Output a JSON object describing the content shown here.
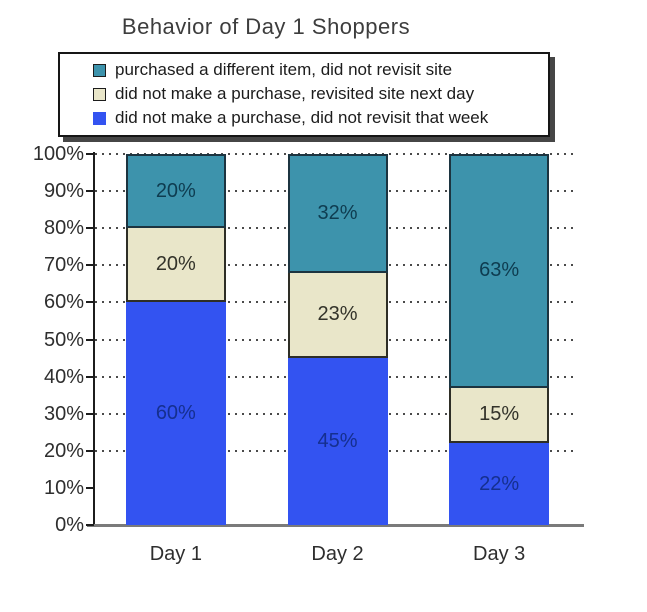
{
  "chart_data": {
    "type": "bar",
    "stacked": true,
    "title": "Behavior of Day 1 Shoppers",
    "categories": [
      "Day 1",
      "Day 2",
      "Day 3"
    ],
    "series": [
      {
        "name": "purchased a different item, did not revisit site",
        "values": [
          20,
          32,
          63
        ],
        "labels": [
          "20%",
          "32%",
          "63%"
        ],
        "color": "#3d93ac",
        "border_color": "#1c3440",
        "border_style": "full",
        "label_color": "#0e3c50",
        "swatch_border": "#1c1c1c"
      },
      {
        "name": "did not make a purchase, revisited site next day",
        "values": [
          20,
          23,
          15
        ],
        "labels": [
          "20%",
          "23%",
          "15%"
        ],
        "color": "#e9e6c9",
        "border_color": "#2e2e26",
        "border_style": "sides-bottom",
        "label_color": "#33332a",
        "swatch_border": "#1c1c1c"
      },
      {
        "name": "did not make a purchase, did not revisit that week",
        "values": [
          60,
          45,
          22
        ],
        "labels": [
          "60%",
          "45%",
          "22%"
        ],
        "color": "#3353f1",
        "border_color": "none",
        "border_style": "none",
        "label_color": "#152f8f",
        "swatch_border": "#3353f1"
      }
    ],
    "stack_order_bottom_to_top": [
      2,
      1,
      0
    ],
    "y_axis": {
      "range": [
        0,
        100
      ],
      "ticks": [
        {
          "value": 0,
          "label": "0%"
        },
        {
          "value": 10,
          "label": "10%"
        },
        {
          "value": 20,
          "label": "20%"
        },
        {
          "value": 30,
          "label": "30%"
        },
        {
          "value": 40,
          "label": "40%"
        },
        {
          "value": 50,
          "label": "50%"
        },
        {
          "value": 60,
          "label": "60%"
        },
        {
          "value": 70,
          "label": "70%"
        },
        {
          "value": 80,
          "label": "80%"
        },
        {
          "value": 90,
          "label": "90%"
        },
        {
          "value": 100,
          "label": "100%"
        }
      ],
      "gridlines_at": [
        20,
        30,
        40,
        50,
        60,
        70,
        80,
        90,
        100
      ],
      "gridline_style": "dotted"
    },
    "legend_position": "top-left",
    "data_label_format": "percent"
  }
}
